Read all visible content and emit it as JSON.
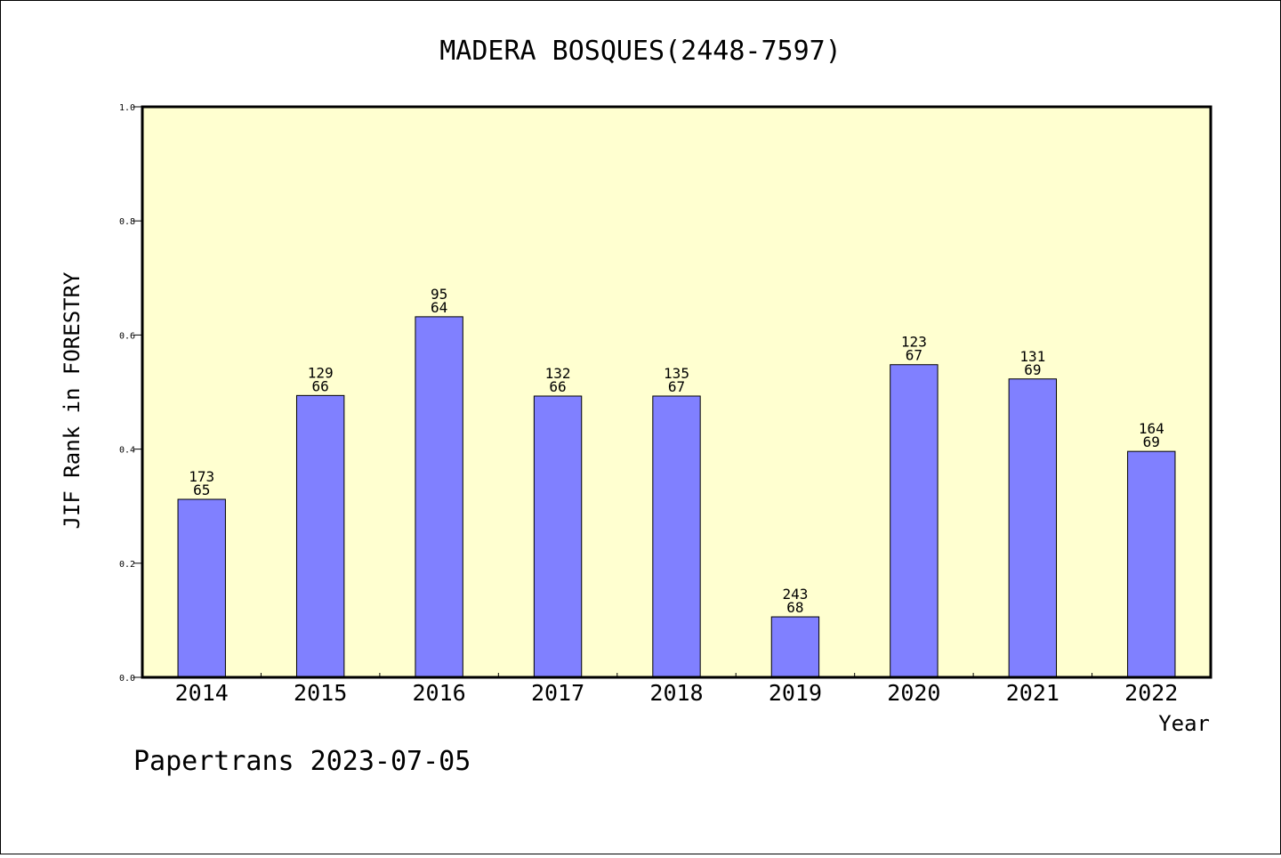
{
  "chart_data": {
    "type": "bar",
    "title": "MADERA BOSQUES(2448-7597)",
    "xlabel": "Year",
    "ylabel": "JIF Rank in FORESTRY",
    "ylim": [
      0,
      1
    ],
    "yticks": [
      "0.0",
      "0.2",
      "0.4",
      "0.6",
      "0.8",
      "1.0"
    ],
    "categories": [
      "2014",
      "2015",
      "2016",
      "2017",
      "2018",
      "2019",
      "2020",
      "2021",
      "2022"
    ],
    "values": [
      0.312,
      0.494,
      0.632,
      0.493,
      0.493,
      0.106,
      0.548,
      0.523,
      0.396
    ],
    "annotations": [
      [
        "173",
        "65"
      ],
      [
        "129",
        "66"
      ],
      [
        "95",
        "64"
      ],
      [
        "132",
        "66"
      ],
      [
        "135",
        "67"
      ],
      [
        "243",
        "68"
      ],
      [
        "123",
        "67"
      ],
      [
        "131",
        "69"
      ],
      [
        "164",
        "69"
      ]
    ],
    "bar_color": "#8080ff",
    "plot_background": "#ffffd0",
    "grid": false
  },
  "footer": "Papertrans 2023-07-05"
}
